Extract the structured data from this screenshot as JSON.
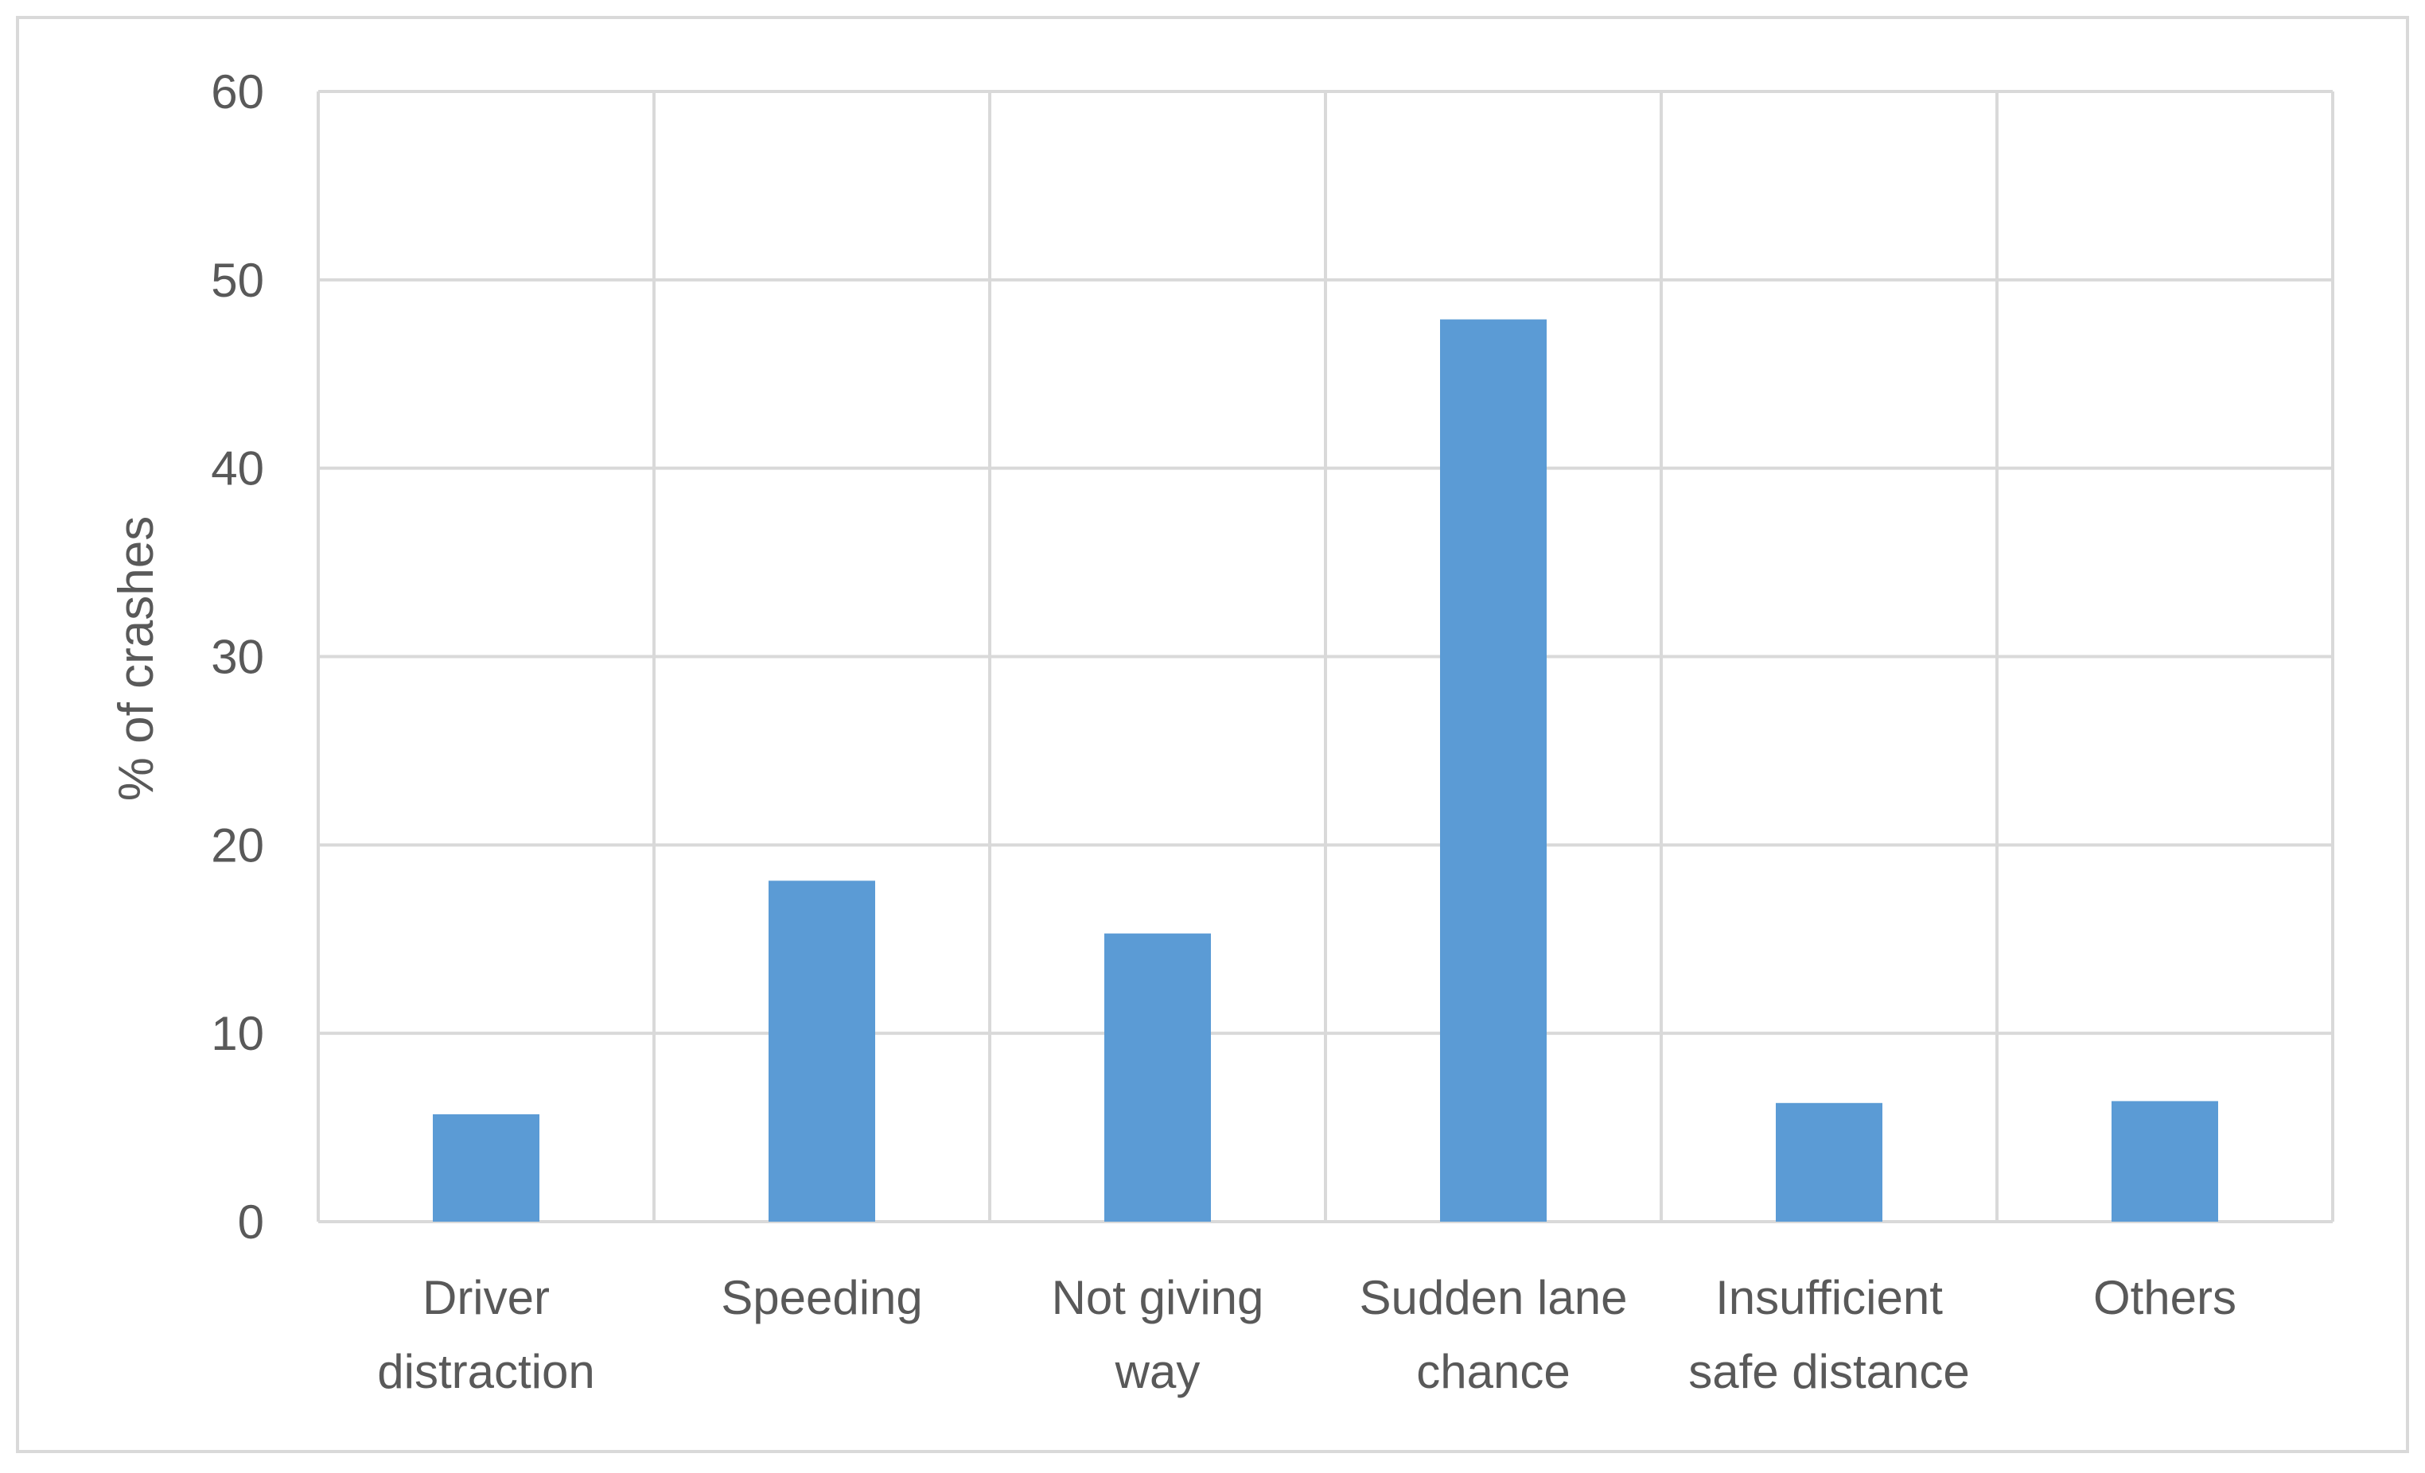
{
  "chart_data": {
    "type": "bar",
    "title": "",
    "xlabel": "",
    "ylabel": "% of crashes",
    "ylim": [
      0,
      60
    ],
    "yticks": [
      0,
      10,
      20,
      30,
      40,
      50,
      60
    ],
    "grid": true,
    "categories": [
      [
        "Driver",
        "distraction"
      ],
      [
        "Speeding"
      ],
      [
        "Not giving",
        "way"
      ],
      [
        "Sudden lane",
        "chance"
      ],
      [
        "Insufficient",
        "safe distance"
      ],
      [
        "Others"
      ]
    ],
    "values": [
      5.7,
      18.1,
      15.3,
      47.9,
      6.3,
      6.4
    ],
    "colors": {
      "bar": "#5b9bd5",
      "grid": "#d9d9d9",
      "text": "#595959",
      "border": "#d9d9d9"
    }
  }
}
